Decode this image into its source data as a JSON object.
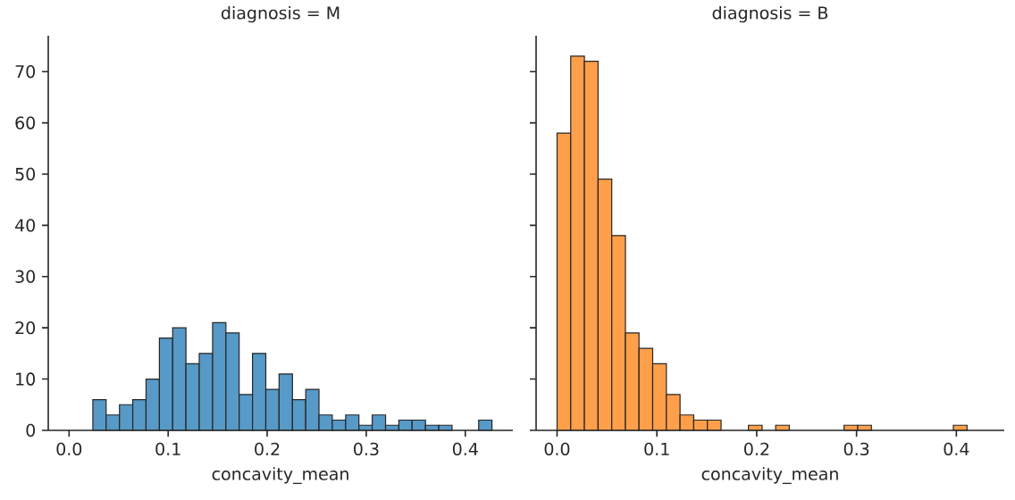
{
  "chart_data": [
    {
      "type": "histogram",
      "title": "diagnosis = M",
      "xlabel": "concavity_mean",
      "color": "#5799c7",
      "bins": [
        0.024,
        0.0374,
        0.0509,
        0.0643,
        0.0777,
        0.0912,
        0.1046,
        0.118,
        0.1314,
        0.1449,
        0.1583,
        0.1717,
        0.1852,
        0.1986,
        0.212,
        0.2255,
        0.2389,
        0.2523,
        0.2657,
        0.2792,
        0.2926,
        0.306,
        0.3195,
        0.3329,
        0.3463,
        0.3598,
        0.3732,
        0.3866,
        0.4,
        0.4135,
        0.4269
      ],
      "values": [
        6,
        3,
        5,
        6,
        10,
        18,
        20,
        13,
        15,
        21,
        19,
        7,
        15,
        8,
        11,
        6,
        8,
        3,
        2,
        3,
        1,
        3,
        1,
        2,
        2,
        1,
        1,
        0,
        0,
        2
      ],
      "xlim": [
        -0.021,
        0.448
      ],
      "xticks": [
        {
          "value": 0,
          "label": "0.0"
        },
        0.1,
        0.2,
        0.3,
        0.4
      ],
      "ylim": [
        0,
        77
      ],
      "yticks": [
        0,
        10,
        20,
        30,
        40,
        50,
        60,
        70
      ],
      "grid": false
    },
    {
      "type": "histogram",
      "title": "diagnosis = B",
      "xlabel": "concavity_mean",
      "color": "#ff9f4a",
      "bins": [
        0,
        0.0137,
        0.0274,
        0.0411,
        0.0548,
        0.0685,
        0.0821,
        0.0958,
        0.1095,
        0.1232,
        0.1369,
        0.1506,
        0.1643,
        0.178,
        0.1917,
        0.2054,
        0.219,
        0.2327,
        0.2464,
        0.2601,
        0.2738,
        0.2875,
        0.3012,
        0.3149,
        0.3286,
        0.3423,
        0.3559,
        0.3696,
        0.3833,
        0.397,
        0.4107
      ],
      "values": [
        58,
        73,
        72,
        49,
        38,
        19,
        16,
        13,
        7,
        3,
        2,
        2,
        0,
        0,
        1,
        0,
        1,
        0,
        0,
        0,
        0,
        1,
        1,
        0,
        0,
        0,
        0,
        0,
        0,
        1
      ],
      "xlim": [
        -0.021,
        0.448
      ],
      "xticks": [
        {
          "value": 0,
          "label": "0.0"
        },
        0.1,
        0.2,
        0.3,
        0.4
      ],
      "ylim": [
        0,
        77
      ],
      "yticks": [
        0,
        10,
        20,
        30,
        40,
        50,
        60,
        70
      ],
      "tick_labels": "x",
      "grid": false
    }
  ]
}
